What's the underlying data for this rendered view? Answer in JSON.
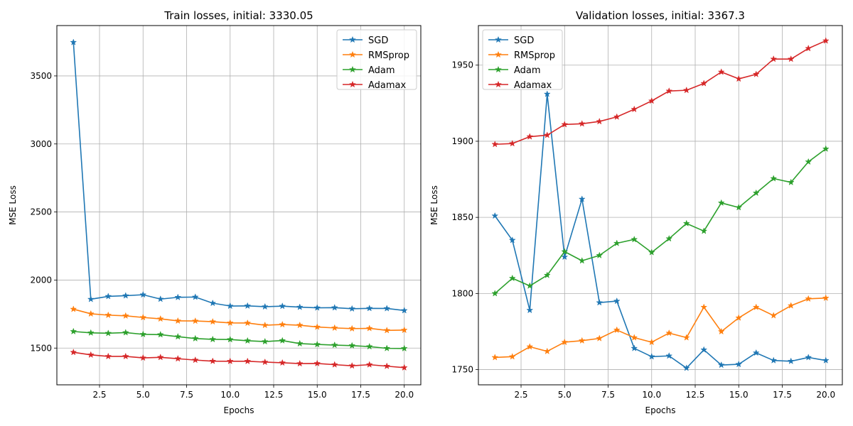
{
  "chart_data": [
    {
      "type": "line",
      "title": "Train losses, initial: 3330.05",
      "xlabel": "Epochs",
      "ylabel": "MSE Loss",
      "xlim": [
        0.05,
        20.95
      ],
      "ylim": [
        1230,
        3870
      ],
      "xticks": [
        2.5,
        5.0,
        7.5,
        10.0,
        12.5,
        15.0,
        17.5,
        20.0
      ],
      "xtick_labels": [
        "2.5",
        "5.0",
        "7.5",
        "10.0",
        "12.5",
        "15.0",
        "17.5",
        "20.0"
      ],
      "yticks": [
        1500,
        2000,
        2500,
        3000,
        3500
      ],
      "ytick_labels": [
        "1500",
        "2000",
        "2500",
        "3000",
        "3500"
      ],
      "grid": true,
      "legend_position": "top-right",
      "x": [
        1,
        2,
        3,
        4,
        5,
        6,
        7,
        8,
        9,
        10,
        11,
        12,
        13,
        14,
        15,
        16,
        17,
        18,
        19,
        20
      ],
      "series": [
        {
          "name": "SGD",
          "color": "#1f77b4",
          "values": [
            3747,
            1859,
            1880,
            1885,
            1892,
            1860,
            1873,
            1875,
            1830,
            1809,
            1810,
            1804,
            1808,
            1801,
            1796,
            1797,
            1789,
            1792,
            1791,
            1776
          ]
        },
        {
          "name": "RMSprop",
          "color": "#ff7f0e",
          "values": [
            1786,
            1752,
            1742,
            1737,
            1725,
            1715,
            1700,
            1699,
            1694,
            1685,
            1684,
            1668,
            1673,
            1668,
            1655,
            1648,
            1643,
            1645,
            1630,
            1632
          ]
        },
        {
          "name": "Adam",
          "color": "#2ca02c",
          "values": [
            1622,
            1612,
            1609,
            1614,
            1601,
            1599,
            1584,
            1570,
            1564,
            1563,
            1554,
            1548,
            1555,
            1533,
            1527,
            1522,
            1518,
            1511,
            1498,
            1497
          ]
        },
        {
          "name": "Adamax",
          "color": "#d62728",
          "values": [
            1469,
            1450,
            1439,
            1439,
            1428,
            1432,
            1422,
            1412,
            1404,
            1403,
            1403,
            1397,
            1392,
            1386,
            1387,
            1378,
            1370,
            1378,
            1367,
            1356
          ]
        }
      ]
    },
    {
      "type": "line",
      "title": "Validation losses, initial: 3367.3",
      "xlabel": "Epochs",
      "ylabel": "MSE Loss",
      "xlim": [
        0.05,
        20.95
      ],
      "ylim": [
        1740,
        1976
      ],
      "xticks": [
        2.5,
        5.0,
        7.5,
        10.0,
        12.5,
        15.0,
        17.5,
        20.0
      ],
      "xtick_labels": [
        "2.5",
        "5.0",
        "7.5",
        "10.0",
        "12.5",
        "15.0",
        "17.5",
        "20.0"
      ],
      "yticks": [
        1750,
        1800,
        1850,
        1900,
        1950
      ],
      "ytick_labels": [
        "1750",
        "1800",
        "1850",
        "1900",
        "1950"
      ],
      "grid": true,
      "legend_position": "top-left",
      "x": [
        1,
        2,
        3,
        4,
        5,
        6,
        7,
        8,
        9,
        10,
        11,
        12,
        13,
        14,
        15,
        16,
        17,
        18,
        19,
        20
      ],
      "series": [
        {
          "name": "SGD",
          "color": "#1f77b4",
          "values": [
            1851,
            1835,
            1789,
            1931,
            1824,
            1862,
            1794,
            1795,
            1764,
            1758.5,
            1759,
            1751,
            1763,
            1753,
            1753.5,
            1761,
            1756,
            1755.5,
            1758,
            1756
          ]
        },
        {
          "name": "RMSprop",
          "color": "#ff7f0e",
          "values": [
            1758,
            1758.5,
            1765,
            1762,
            1768,
            1769,
            1770.5,
            1776,
            1771,
            1768,
            1774,
            1771,
            1791,
            1775,
            1784,
            1791,
            1785.5,
            1792,
            1796.5,
            1797
          ]
        },
        {
          "name": "Adam",
          "color": "#2ca02c",
          "values": [
            1800,
            1810,
            1805,
            1812,
            1827.5,
            1821.5,
            1825,
            1833,
            1835.5,
            1827,
            1836,
            1846,
            1841,
            1859.5,
            1856.5,
            1866,
            1875.5,
            1873,
            1886.5,
            1895
          ]
        },
        {
          "name": "Adamax",
          "color": "#d62728",
          "values": [
            1898,
            1898.5,
            1903,
            1904,
            1911,
            1911.5,
            1913,
            1916,
            1921,
            1926.5,
            1933,
            1933.5,
            1938,
            1945.5,
            1941,
            1944,
            1954,
            1954,
            1961,
            1966
          ]
        }
      ]
    }
  ]
}
